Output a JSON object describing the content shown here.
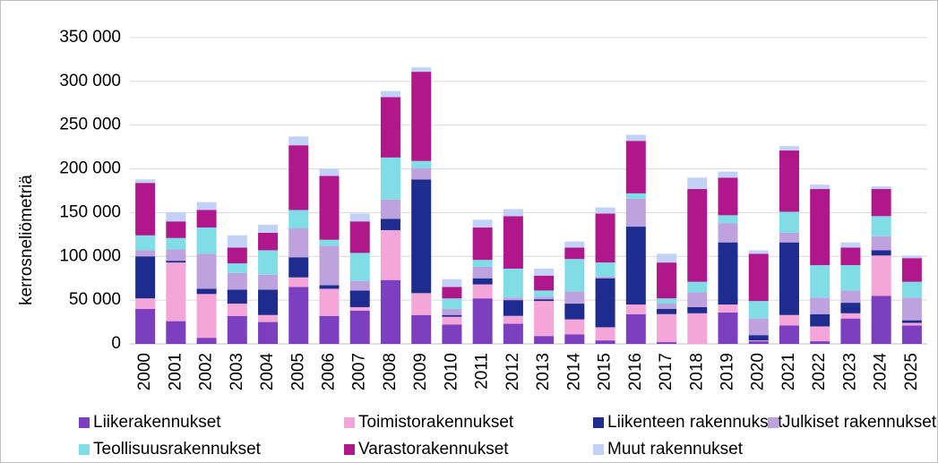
{
  "chart_data": {
    "type": "stacked_bar",
    "ylabel": "kerrosneliömetriä",
    "categories": [
      "2000",
      "2001",
      "2002",
      "2003",
      "2004",
      "2005",
      "2006",
      "2007",
      "2008",
      "2009",
      "2010",
      "2011",
      "2012",
      "2013",
      "2014",
      "2015",
      "2016",
      "2017",
      "2018",
      "2019",
      "2020",
      "2021",
      "2022",
      "2023",
      "2024",
      "2025"
    ],
    "series": [
      {
        "name": "Liikerakennukset",
        "color": "#7b3fc0",
        "values": [
          40000,
          26000,
          7000,
          32000,
          25000,
          65000,
          32000,
          38000,
          73000,
          33000,
          22000,
          52000,
          23000,
          9000,
          11000,
          4000,
          34000,
          2000,
          0,
          36000,
          3000,
          21000,
          3000,
          29000,
          55000,
          21000
        ]
      },
      {
        "name": "Toimistorakennukset",
        "color": "#f4a6d8",
        "values": [
          12000,
          67000,
          50000,
          14000,
          8000,
          11000,
          31000,
          4000,
          57000,
          25000,
          9000,
          16000,
          9000,
          40000,
          17000,
          15000,
          11000,
          32000,
          35000,
          9000,
          1000,
          12000,
          17000,
          6000,
          46000,
          3000
        ]
      },
      {
        "name": "Liikenteen rakennukset",
        "color": "#1f2c8f",
        "values": [
          48000,
          2000,
          6000,
          16000,
          29000,
          23000,
          4000,
          19000,
          13000,
          130000,
          2000,
          7000,
          18000,
          2000,
          18000,
          56000,
          89000,
          6000,
          7000,
          71000,
          6000,
          83000,
          14000,
          12000,
          6000,
          3000
        ]
      },
      {
        "name": "Julkiset rakennukset",
        "color": "#bea2de",
        "values": [
          7000,
          13000,
          40000,
          19000,
          17000,
          33000,
          45000,
          11000,
          22000,
          13000,
          7000,
          13000,
          3000,
          3000,
          14000,
          2000,
          32000,
          6000,
          17000,
          22000,
          19000,
          11000,
          19000,
          14000,
          16000,
          26000
        ]
      },
      {
        "name": "Teollisuusrakennukset",
        "color": "#80dde6",
        "values": [
          17000,
          13000,
          30000,
          11000,
          28000,
          21000,
          7000,
          32000,
          48000,
          8000,
          12000,
          8000,
          33000,
          7000,
          37000,
          16000,
          6000,
          6000,
          12000,
          9000,
          20000,
          24000,
          37000,
          29000,
          23000,
          18000
        ]
      },
      {
        "name": "Varastorakennukset",
        "color": "#b0178a",
        "values": [
          60000,
          19000,
          20000,
          18000,
          20000,
          74000,
          73000,
          36000,
          69000,
          102000,
          13000,
          37000,
          60000,
          17000,
          13000,
          56000,
          60000,
          41000,
          106000,
          43000,
          54000,
          70000,
          87000,
          20000,
          31000,
          27000
        ]
      },
      {
        "name": "Muut rakennukset",
        "color": "#c2d1f6",
        "values": [
          4000,
          10000,
          9000,
          14000,
          9000,
          10000,
          8000,
          9000,
          7000,
          5000,
          9000,
          9000,
          8000,
          8000,
          7000,
          7000,
          7000,
          10000,
          13000,
          7000,
          4000,
          5000,
          5000,
          6000,
          3000,
          3000
        ]
      }
    ],
    "ylim": [
      0,
      350000
    ],
    "yticks": [
      0,
      {
        "value": 50000,
        "label": "50 000"
      },
      {
        "value": 100000,
        "label": "100 000"
      },
      {
        "value": 150000,
        "label": "150 000"
      },
      {
        "value": 200000,
        "label": "200 000"
      },
      {
        "value": 250000,
        "label": "250 000"
      },
      {
        "value": 300000,
        "label": "300 000"
      },
      {
        "value": 350000,
        "label": "350 000"
      }
    ],
    "grid": true,
    "legend": "bottom"
  }
}
